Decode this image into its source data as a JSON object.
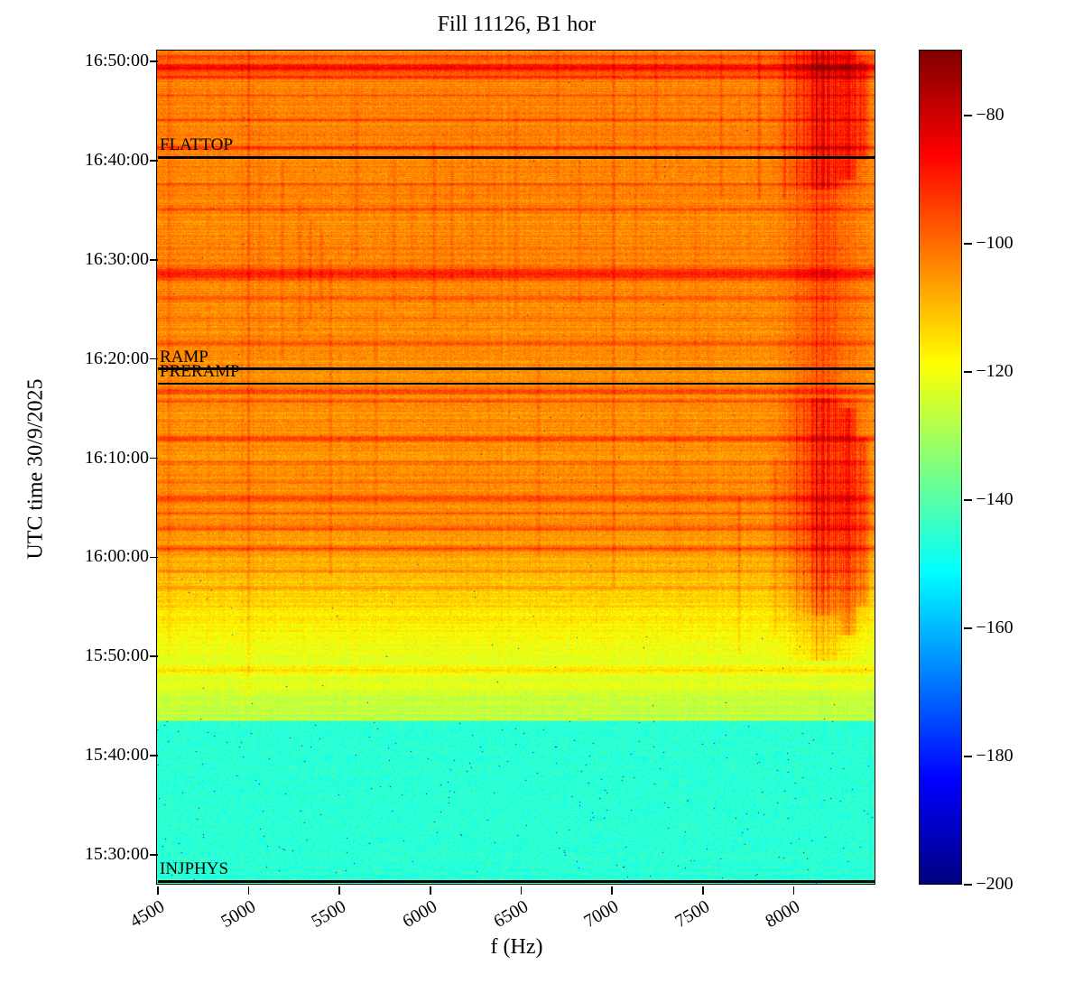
{
  "chart_data": {
    "type": "heatmap",
    "title": "Fill 11126, B1 hor",
    "xlabel": "f (Hz)",
    "ylabel": "UTC time 30/9/2025",
    "x_extent_hz": [
      4500,
      8450
    ],
    "x_ticks": [
      4500,
      5000,
      5500,
      6000,
      6500,
      7000,
      7500,
      8000
    ],
    "y_extent": {
      "top": "16:51:00",
      "bottom": "15:27:00"
    },
    "y_ticks": [
      "16:50:00",
      "16:40:00",
      "16:30:00",
      "16:20:00",
      "16:10:00",
      "16:00:00",
      "15:50:00",
      "15:40:00",
      "15:30:00"
    ],
    "colorbar": {
      "vmin": -200,
      "vmax": -70,
      "colormap": "jet",
      "ticks": [
        {
          "v": -80,
          "label": "−80"
        },
        {
          "v": -100,
          "label": "−100"
        },
        {
          "v": -120,
          "label": "−120"
        },
        {
          "v": -140,
          "label": "−140"
        },
        {
          "v": -160,
          "label": "−160"
        },
        {
          "v": -180,
          "label": "−180"
        },
        {
          "v": -200,
          "label": "−200"
        }
      ]
    },
    "annotations": [
      {
        "label": "FLATTOP",
        "time": "16:40:20"
      },
      {
        "label": "RAMP",
        "time": "16:19:00"
      },
      {
        "label": "PRERAMP",
        "time": "16:17:30"
      },
      {
        "label": "INJPHYS",
        "time": "15:27:20"
      }
    ],
    "profile": {
      "base": [
        [
          "15:27:00",
          -146
        ],
        [
          "15:43:20",
          -146
        ],
        [
          "15:43:30",
          -127
        ],
        [
          "15:49:00",
          -123
        ],
        [
          "15:56:00",
          -113
        ],
        [
          "16:03:00",
          -105
        ],
        [
          "16:51:00",
          -103
        ]
      ],
      "noise": [
        [
          "15:27:00",
          5.5
        ],
        [
          "15:43:20",
          5.5
        ],
        [
          "15:43:30",
          4.8
        ],
        [
          "16:51:00",
          4.5
        ]
      ],
      "row_var": [
        [
          "15:27:00",
          0.8
        ],
        [
          "15:43:20",
          0.8
        ],
        [
          "15:43:30",
          2.2
        ],
        [
          "16:00:00",
          2.8
        ],
        [
          "16:51:00",
          2.9
        ]
      ]
    },
    "h_streaks": [
      [
        "16:50:20",
        8,
        10
      ],
      [
        "16:49:15",
        18,
        18
      ],
      [
        "16:48:20",
        10,
        10
      ],
      [
        "16:46:30",
        6,
        8
      ],
      [
        "16:44:00",
        7,
        8
      ],
      [
        "16:41:10",
        9,
        10
      ],
      [
        "16:37:30",
        6,
        8
      ],
      [
        "16:35:00",
        7,
        8
      ],
      [
        "16:31:00",
        6,
        6
      ],
      [
        "16:28:30",
        14,
        25
      ],
      [
        "16:26:00",
        7,
        10
      ],
      [
        "16:24:00",
        5,
        8
      ],
      [
        "16:21:30",
        7,
        8
      ],
      [
        "16:16:40",
        12,
        12
      ],
      [
        "16:15:40",
        9,
        8
      ],
      [
        "16:11:50",
        12,
        12
      ],
      [
        "16:09:30",
        6,
        8
      ],
      [
        "16:07:30",
        7,
        8
      ],
      [
        "16:05:50",
        12,
        15
      ],
      [
        "16:04:20",
        7,
        8
      ],
      [
        "16:02:50",
        9,
        10
      ],
      [
        "16:00:50",
        11,
        12
      ],
      [
        "15:58:30",
        7,
        8
      ],
      [
        "15:56:50",
        7,
        8
      ],
      [
        "15:48:30",
        9,
        18
      ],
      [
        "15:46:50",
        5,
        8
      ]
    ],
    "v_bands": [
      {
        "f": 8160,
        "hw": 110,
        "segments": [
          [
            "15:49:30",
            "15:54:00",
            9
          ],
          [
            "15:54:00",
            "16:16:00",
            16
          ],
          [
            "16:16:00",
            "16:37:00",
            8
          ],
          [
            "16:37:00",
            "16:51:00",
            17
          ]
        ]
      },
      {
        "f": 8300,
        "hw": 30,
        "segments": [
          [
            "15:52:00",
            "16:15:00",
            12
          ],
          [
            "16:38:00",
            "16:51:00",
            11
          ]
        ]
      },
      {
        "f": 8380,
        "hw": 22,
        "segments": [
          [
            "15:55:00",
            "16:12:00",
            8
          ],
          [
            "16:40:00",
            "16:50:00",
            9
          ]
        ]
      }
    ],
    "v_lines": [
      [
        4565,
        4,
        "15:50:00",
        "16:51:00"
      ],
      [
        5005,
        5,
        "15:46:00",
        "16:51:00"
      ],
      [
        5065,
        3,
        "16:20:00",
        "16:45:00"
      ],
      [
        5190,
        4,
        "16:20:00",
        "16:40:00"
      ],
      [
        5285,
        4,
        "16:22:00",
        "16:36:00"
      ],
      [
        5345,
        5,
        "16:24:00",
        "16:34:00"
      ],
      [
        5405,
        4,
        "16:25:00",
        "16:33:00"
      ],
      [
        5455,
        4,
        "15:58:00",
        "16:30:00"
      ],
      [
        5600,
        3,
        "16:30:00",
        "16:45:00"
      ],
      [
        5705,
        3,
        "16:05:00",
        "16:25:00"
      ],
      [
        5805,
        3,
        "16:25:00",
        "16:40:00"
      ],
      [
        5905,
        3,
        "16:28:00",
        "16:38:00"
      ],
      [
        6025,
        4,
        "16:24:00",
        "16:42:00"
      ],
      [
        6125,
        3,
        "16:28:00",
        "16:40:00"
      ],
      [
        6235,
        3,
        "16:25:00",
        "16:45:00"
      ],
      [
        6355,
        3,
        "16:28:00",
        "16:40:00"
      ],
      [
        6475,
        4,
        "16:24:00",
        "16:45:00"
      ],
      [
        6600,
        3,
        "16:00:00",
        "16:20:00"
      ],
      [
        6705,
        3,
        "16:38:00",
        "16:51:00"
      ],
      [
        6825,
        3,
        "16:25:00",
        "16:40:00"
      ],
      [
        7015,
        5,
        "15:57:00",
        "16:51:00"
      ],
      [
        7135,
        4,
        "16:18:00",
        "16:51:00"
      ],
      [
        7245,
        4,
        "16:38:00",
        "16:51:00"
      ],
      [
        7350,
        3,
        "16:00:00",
        "16:15:00"
      ],
      [
        7465,
        3,
        "16:18:00",
        "16:35:00"
      ],
      [
        7605,
        5,
        "16:36:00",
        "16:51:00"
      ],
      [
        7705,
        5,
        "15:50:00",
        "16:06:00"
      ],
      [
        7815,
        6,
        "16:36:00",
        "16:51:00"
      ],
      [
        7905,
        6,
        "15:52:00",
        "16:10:00"
      ],
      [
        7955,
        5,
        "16:36:00",
        "16:51:00"
      ]
    ],
    "seed": 11126
  }
}
